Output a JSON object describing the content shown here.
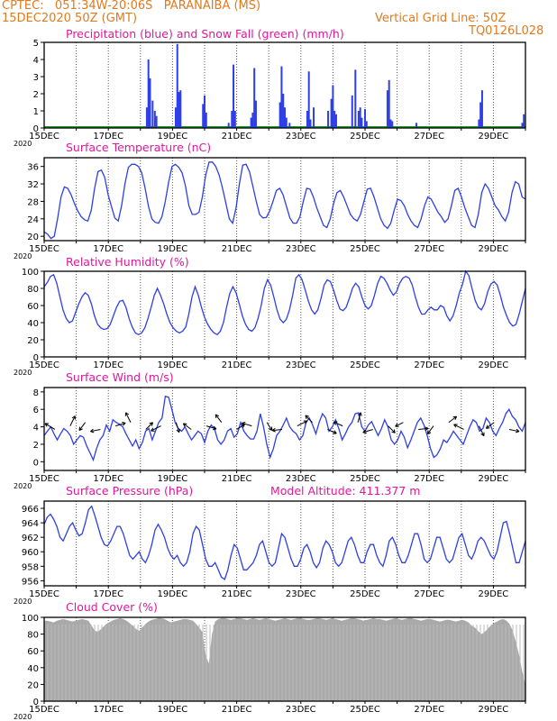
{
  "header": {
    "line1": "CPTEC:   051:34W-20:06S   PARANAIBA (MS)",
    "line2_left": "15DEC2020 50Z (GMT)",
    "line2_right": "Vertical Grid Line: 50Z",
    "line3_right": "TQ0126L028"
  },
  "colors": {
    "header": "#e07a1f",
    "title": "#e0189a",
    "line": "#2e3fe6",
    "snow": "#1f9a2a",
    "cloud": "#a9a9a9",
    "grid": "#555555"
  },
  "x_axis": {
    "labels": [
      "15DEC",
      "17DEC",
      "19DEC",
      "21DEC",
      "23DEC",
      "25DEC",
      "27DEC",
      "29DEC"
    ],
    "year_label": "2020"
  },
  "chart_data": [
    {
      "type": "bar",
      "title": "Precipitation (blue) and Snow Fall (green) (mm/h)",
      "ylim": [
        0,
        5
      ],
      "yticks": [
        0,
        1,
        2,
        3,
        4,
        5
      ],
      "series": [
        {
          "name": "Precipitation",
          "color": "#2e3fe6",
          "values": [
            {
              "day": 3.2,
              "value": 1.2
            },
            {
              "day": 3.25,
              "value": 4.0
            },
            {
              "day": 3.3,
              "value": 2.9
            },
            {
              "day": 3.38,
              "value": 1.6
            },
            {
              "day": 3.45,
              "value": 1.0
            },
            {
              "day": 3.5,
              "value": 0.7
            },
            {
              "day": 4.1,
              "value": 1.2
            },
            {
              "day": 4.15,
              "value": 4.9
            },
            {
              "day": 4.2,
              "value": 2.1
            },
            {
              "day": 4.25,
              "value": 2.2
            },
            {
              "day": 4.95,
              "value": 1.4
            },
            {
              "day": 5.0,
              "value": 1.9
            },
            {
              "day": 5.05,
              "value": 0.9
            },
            {
              "day": 5.75,
              "value": 0.3
            },
            {
              "day": 5.85,
              "value": 1.0
            },
            {
              "day": 5.9,
              "value": 3.7
            },
            {
              "day": 5.95,
              "value": 1.0
            },
            {
              "day": 6.45,
              "value": 0.6
            },
            {
              "day": 6.5,
              "value": 0.9
            },
            {
              "day": 6.55,
              "value": 3.5
            },
            {
              "day": 6.6,
              "value": 1.6
            },
            {
              "day": 7.35,
              "value": 1.5
            },
            {
              "day": 7.4,
              "value": 3.6
            },
            {
              "day": 7.45,
              "value": 2.0
            },
            {
              "day": 7.5,
              "value": 1.2
            },
            {
              "day": 7.55,
              "value": 0.6
            },
            {
              "day": 7.65,
              "value": 0.3
            },
            {
              "day": 8.2,
              "value": 1.0
            },
            {
              "day": 8.25,
              "value": 3.3
            },
            {
              "day": 8.3,
              "value": 0.5
            },
            {
              "day": 8.4,
              "value": 1.2
            },
            {
              "day": 8.85,
              "value": 1.0
            },
            {
              "day": 8.95,
              "value": 1.7
            },
            {
              "day": 9.0,
              "value": 2.5
            },
            {
              "day": 9.05,
              "value": 1.0
            },
            {
              "day": 9.1,
              "value": 0.8
            },
            {
              "day": 9.6,
              "value": 1.9
            },
            {
              "day": 9.7,
              "value": 3.4
            },
            {
              "day": 9.8,
              "value": 1.0
            },
            {
              "day": 9.85,
              "value": 1.2
            },
            {
              "day": 9.9,
              "value": 0.6
            },
            {
              "day": 10.0,
              "value": 1.1
            },
            {
              "day": 10.05,
              "value": 0.4
            },
            {
              "day": 10.7,
              "value": 2.2
            },
            {
              "day": 10.75,
              "value": 2.8
            },
            {
              "day": 10.8,
              "value": 0.5
            },
            {
              "day": 10.85,
              "value": 0.4
            },
            {
              "day": 11.6,
              "value": 0.3
            },
            {
              "day": 13.55,
              "value": 0.5
            },
            {
              "day": 13.6,
              "value": 1.5
            },
            {
              "day": 13.65,
              "value": 2.2
            },
            {
              "day": 14.9,
              "value": 0.3
            },
            {
              "day": 14.95,
              "value": 0.8
            }
          ]
        },
        {
          "name": "Snow Fall",
          "color": "#1f9a2a",
          "values": []
        }
      ]
    },
    {
      "type": "line",
      "title": "Surface Temperature (nC)",
      "ylim": [
        19,
        38
      ],
      "yticks": [
        20,
        24,
        28,
        32,
        36
      ],
      "y": [
        21,
        20.5,
        19.5,
        20,
        24,
        29,
        31.3,
        31,
        29.5,
        27.5,
        25.8,
        24.5,
        23.8,
        23.5,
        26,
        31,
        34.8,
        35.2,
        33.5,
        29.5,
        26.8,
        24.2,
        23.5,
        27,
        32,
        35.8,
        36.5,
        36.5,
        36,
        34.5,
        31,
        26.8,
        24,
        23.2,
        23,
        24.5,
        28,
        32.5,
        36,
        36.5,
        35.8,
        34.5,
        31.5,
        27,
        25,
        25,
        25.5,
        29,
        34,
        37,
        37,
        36,
        34,
        31,
        27.5,
        24,
        23,
        26.5,
        32,
        36.3,
        36.5,
        34.8,
        31.5,
        28,
        25,
        24.2,
        24.3,
        25.8,
        28,
        30.5,
        31,
        29.5,
        26.8,
        24.2,
        23,
        23,
        24.5,
        28,
        31,
        30.8,
        29,
        26.5,
        24.5,
        22.5,
        22,
        24,
        27.5,
        30,
        30.5,
        29,
        27,
        25,
        24,
        23.5,
        25,
        28,
        30.8,
        31,
        29,
        26.5,
        24,
        22.5,
        21.8,
        23,
        26,
        28.5,
        28.2,
        27,
        25,
        23.5,
        22.5,
        22,
        24,
        27,
        29,
        28.5,
        27,
        25.5,
        24.5,
        23.2,
        24,
        27,
        30.5,
        31,
        29,
        26.5,
        24.5,
        22.5,
        22,
        25,
        30,
        32,
        31,
        29,
        27,
        26,
        24.5,
        23.5,
        25.5,
        30,
        32.5,
        32,
        29,
        28.5
      ]
    },
    {
      "type": "line",
      "title": "Relative Humidity (%)",
      "ylim": [
        0,
        100
      ],
      "yticks": [
        0,
        20,
        40,
        60,
        80,
        100
      ],
      "y": [
        82,
        87,
        94,
        96,
        86,
        70,
        55,
        45,
        40,
        42,
        52,
        62,
        70,
        75,
        72,
        62,
        48,
        38,
        34,
        32,
        33,
        38,
        48,
        58,
        65,
        66,
        58,
        45,
        35,
        28,
        26,
        28,
        34,
        45,
        58,
        72,
        80,
        72,
        62,
        50,
        40,
        34,
        30,
        28,
        30,
        35,
        50,
        70,
        82,
        72,
        58,
        46,
        38,
        32,
        28,
        26,
        30,
        40,
        58,
        74,
        82,
        75,
        62,
        48,
        38,
        32,
        30,
        34,
        45,
        60,
        80,
        90,
        84,
        70,
        55,
        44,
        40,
        44,
        55,
        72,
        92,
        96,
        90,
        78,
        65,
        55,
        50,
        55,
        68,
        84,
        90,
        88,
        78,
        66,
        56,
        54,
        58,
        68,
        80,
        86,
        82,
        70,
        60,
        56,
        60,
        72,
        86,
        94,
        92,
        86,
        78,
        72,
        76,
        86,
        92,
        94,
        92,
        84,
        70,
        58,
        50,
        50,
        55,
        58,
        55,
        55,
        60,
        58,
        48,
        42,
        48,
        60,
        75,
        85,
        100,
        95,
        80,
        66,
        58,
        55,
        62,
        76,
        85,
        88,
        84,
        72,
        58,
        48,
        40,
        36,
        38,
        50,
        65,
        80
      ]
    },
    {
      "type": "line",
      "title": "Surface Wind (m/s)",
      "ylim": [
        -1,
        8.5
      ],
      "yticks": [
        0,
        2,
        4,
        6,
        8
      ],
      "y": [
        3,
        3.5,
        4,
        3.2,
        2.5,
        3.2,
        3.8,
        3.5,
        3,
        2,
        2.5,
        3,
        2.8,
        1.8,
        1,
        0.2,
        1.5,
        2.5,
        3,
        4.2,
        3.5,
        4.8,
        4.5,
        4.3,
        4,
        3.2,
        2.5,
        1.8,
        2.5,
        1.5,
        2.2,
        3.5,
        3.8,
        2.5,
        3.5,
        4.5,
        5,
        7.5,
        7.4,
        6,
        4.5,
        3.8,
        3.5,
        4,
        3.2,
        2.5,
        3,
        3.5,
        3.2,
        2.2,
        3.5,
        4.2,
        3.8,
        2.5,
        2,
        2.5,
        3.5,
        3.8,
        2.8,
        3.2,
        4.5,
        3.5,
        3,
        2.6,
        2.6,
        3.5,
        5.5,
        4,
        2,
        0.5,
        1.5,
        3,
        3.5,
        4.2,
        5,
        4,
        3.5,
        3.2,
        2.5,
        3,
        4.5,
        5,
        4.2,
        3.2,
        4.5,
        5.5,
        5,
        3.5,
        4,
        4.8,
        3.8,
        2.5,
        3.2,
        4,
        4.5,
        5.5,
        5.6,
        4,
        3.5,
        4.2,
        4.6,
        3.8,
        3,
        3.8,
        4.8,
        4,
        2.5,
        2,
        2.5,
        3.5,
        2.8,
        1.6,
        2.5,
        3.5,
        4.5,
        5,
        4.2,
        3,
        1.5,
        0.5,
        0.8,
        1.5,
        2.5,
        2.2,
        2.8,
        3.5,
        3,
        2.5,
        2,
        3,
        4,
        4.8,
        4.5,
        3.5,
        3.8,
        5,
        4.5,
        3.5,
        3,
        3.8,
        4.5,
        5.5,
        6,
        5.2,
        4.8,
        4,
        3.5,
        4.5
      ]
    },
    {
      "type": "line",
      "title": "Surface Pressure (hPa)",
      "annotation": "Model Altitude: 411.377 m",
      "ylim": [
        955.3,
        967
      ],
      "yticks": [
        956,
        958,
        960,
        962,
        964,
        966
      ],
      "y": [
        963.8,
        964.8,
        965.2,
        964.5,
        963.5,
        962,
        961.5,
        962.5,
        963.5,
        964,
        963,
        962.2,
        962.5,
        964,
        965.8,
        966.3,
        965,
        963.5,
        962,
        961,
        960.8,
        961.5,
        962.5,
        963.5,
        963.5,
        962.5,
        961,
        959.5,
        959,
        959.5,
        960,
        959,
        958.5,
        959.5,
        961,
        963,
        963.8,
        963,
        962,
        960.5,
        959.5,
        959,
        959.5,
        958.5,
        958,
        958.5,
        960,
        962.5,
        963.5,
        963,
        961,
        959,
        958,
        958,
        958.5,
        957.5,
        956.5,
        956.2,
        957.5,
        959.5,
        961,
        960.5,
        959,
        957.5,
        957.5,
        958,
        958.5,
        959.5,
        961,
        961.5,
        960,
        958.5,
        958,
        958.5,
        960.5,
        962.5,
        962,
        960.5,
        959,
        958,
        958,
        959,
        960.5,
        961,
        960,
        958.5,
        957.8,
        958.5,
        960.5,
        961.5,
        961,
        960,
        958.5,
        958,
        958.5,
        960,
        961.5,
        962,
        961,
        959.5,
        958.5,
        958.5,
        960,
        961,
        961,
        959.5,
        958.5,
        958,
        959.5,
        961.5,
        962,
        961,
        959.5,
        958.5,
        958.5,
        959.5,
        961,
        962.5,
        962.5,
        961,
        959,
        958.5,
        959,
        960.5,
        962,
        962,
        960.5,
        959,
        958.5,
        959,
        960.5,
        962,
        962.5,
        961,
        959.5,
        959,
        960,
        961.5,
        962,
        961.5,
        960.5,
        959.5,
        959,
        960,
        962,
        964,
        964.2,
        962.5,
        960.5,
        958.5,
        958.5,
        960,
        961.5
      ]
    },
    {
      "type": "area",
      "title": "Cloud Cover (%)",
      "ylim": [
        0,
        100
      ],
      "yticks": [
        0,
        20,
        40,
        60,
        80,
        100
      ],
      "y": [
        96,
        96,
        95,
        94,
        96,
        97,
        98,
        97,
        96,
        95,
        96,
        97,
        98,
        97,
        96,
        90,
        84,
        83,
        86,
        90,
        93,
        95,
        97,
        98,
        99,
        98,
        96,
        93,
        90,
        86,
        84,
        88,
        92,
        95,
        97,
        98,
        99,
        99,
        98,
        96,
        94,
        95,
        96,
        97,
        98,
        98,
        97,
        96,
        92,
        88,
        82,
        55,
        45,
        80,
        95,
        98,
        99,
        99,
        98,
        97,
        98,
        99,
        99,
        98,
        97,
        98,
        99,
        98,
        97,
        98,
        99,
        98,
        97,
        96,
        97,
        98,
        99,
        98,
        97,
        98,
        99,
        99,
        98,
        97,
        97,
        98,
        99,
        99,
        98,
        97,
        98,
        99,
        98,
        97,
        96,
        97,
        98,
        99,
        99,
        98,
        97,
        96,
        97,
        98,
        99,
        98,
        98,
        97,
        96,
        97,
        98,
        99,
        98,
        97,
        98,
        99,
        99,
        98,
        97,
        96,
        97,
        98,
        98,
        97,
        96,
        95,
        96,
        97,
        97,
        96,
        95,
        96,
        97,
        96,
        94,
        90,
        88,
        84,
        80,
        82,
        86,
        90,
        93,
        95,
        97,
        98,
        96,
        92,
        84,
        70,
        55,
        35,
        20
      ]
    }
  ]
}
